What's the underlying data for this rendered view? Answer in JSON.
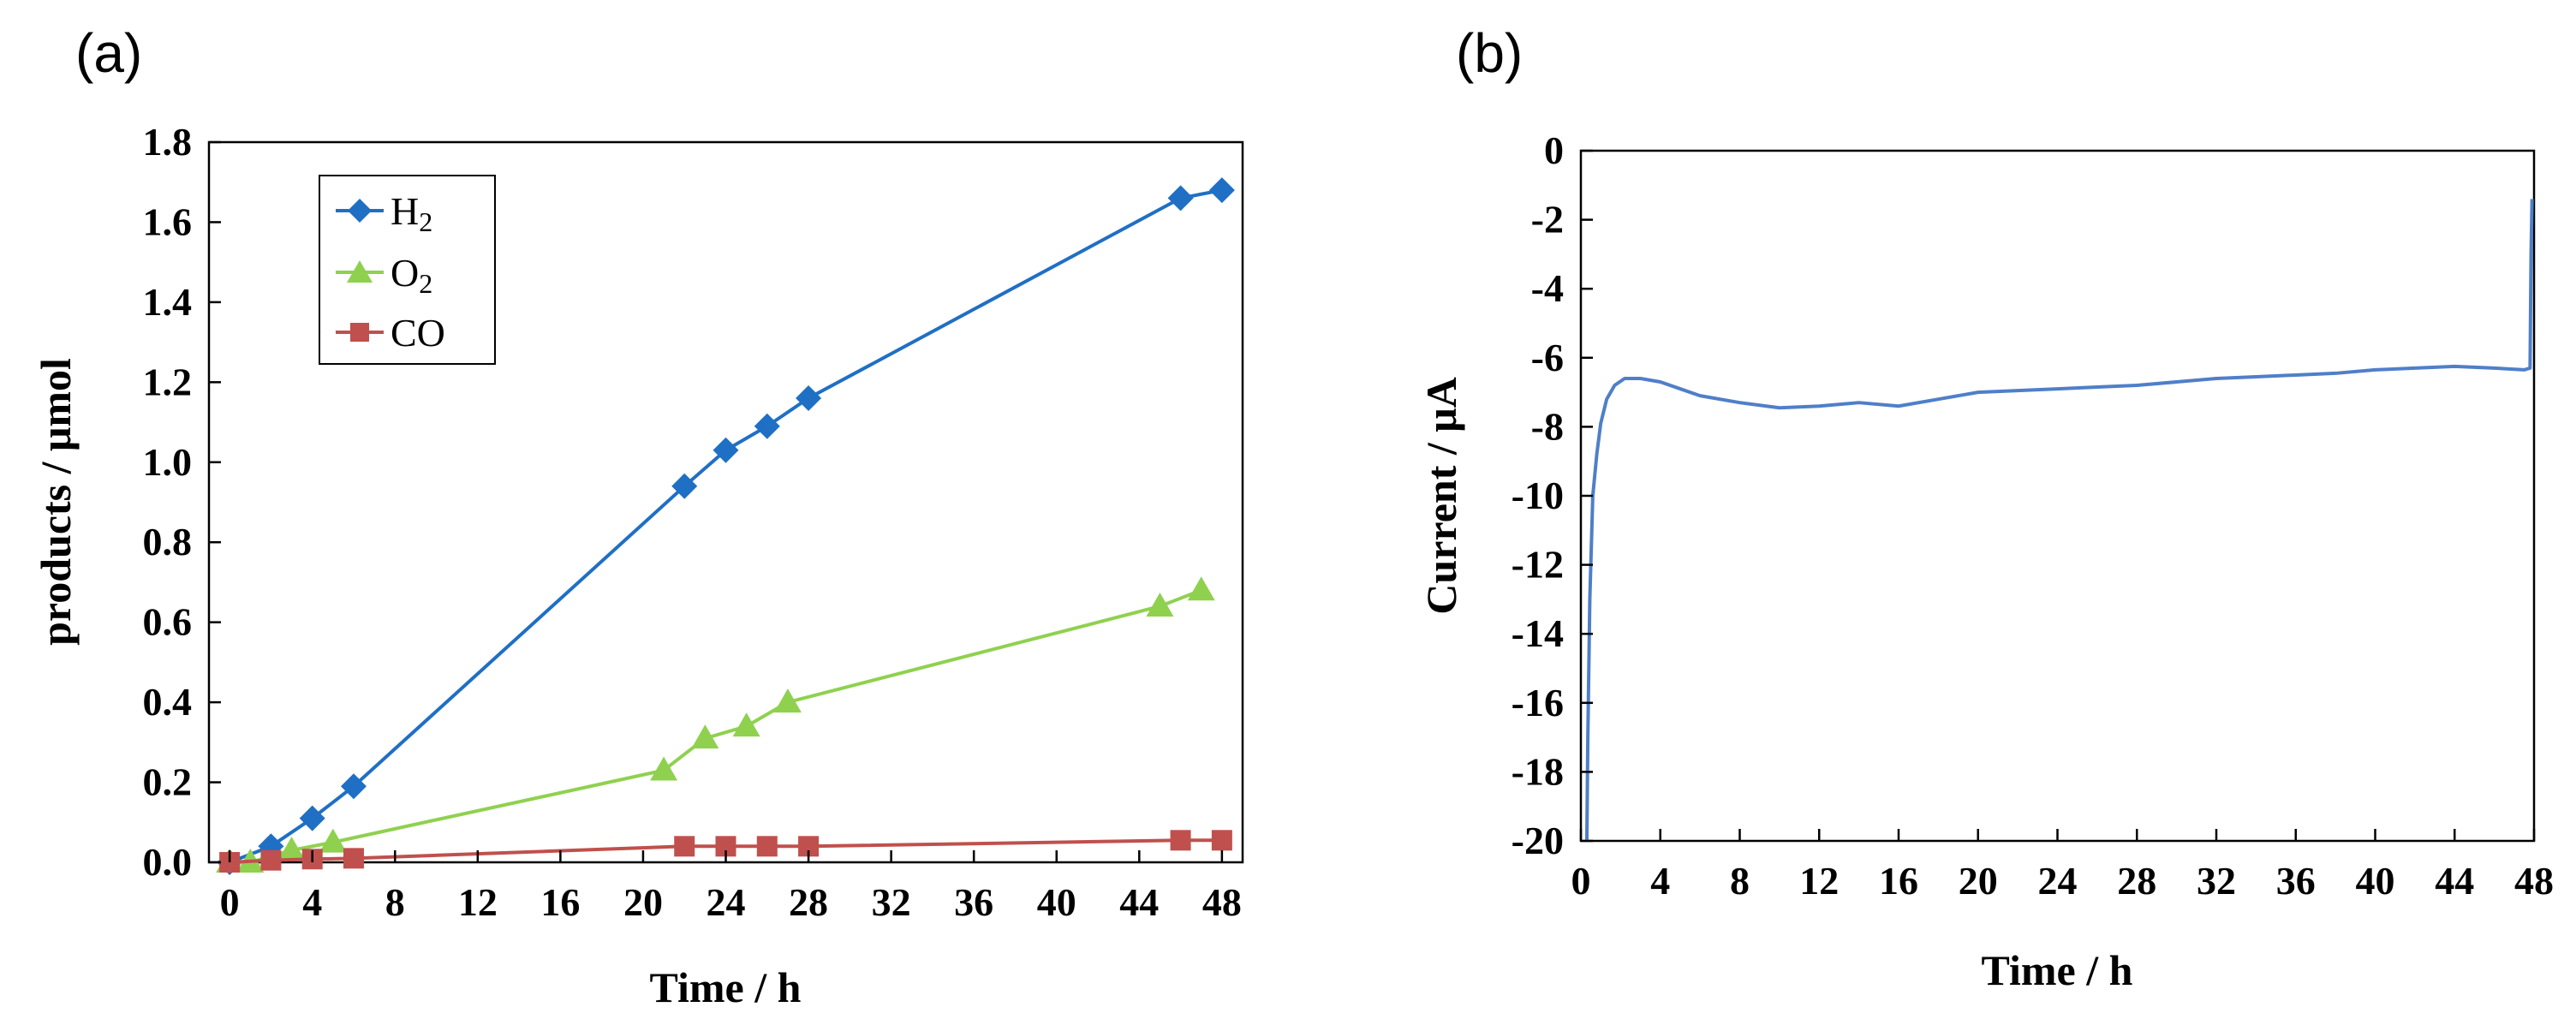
{
  "chart_data": [
    {
      "panel_label": "(a)",
      "type": "line",
      "title": "",
      "xlabel": "Time / h",
      "ylabel": "products / μmol",
      "xlim": [
        -1,
        49
      ],
      "ylim": [
        0,
        1.8
      ],
      "xticks": [
        "0",
        "4",
        "8",
        "12",
        "16",
        "20",
        "24",
        "28",
        "32",
        "36",
        "40",
        "44",
        "48"
      ],
      "yticks": [
        "0.0",
        "0.2",
        "0.4",
        "0.6",
        "0.8",
        "1.0",
        "1.2",
        "1.4",
        "1.6",
        "1.8"
      ],
      "legend_position": "top-left",
      "series": [
        {
          "name": "H",
          "subscript": "2",
          "color": "#1f6fc5",
          "marker": "diamond",
          "x": [
            0,
            2,
            4,
            6,
            22,
            24,
            26,
            28,
            46,
            48
          ],
          "y": [
            0.0,
            0.04,
            0.11,
            0.19,
            0.94,
            1.03,
            1.09,
            1.16,
            1.66,
            1.68
          ]
        },
        {
          "name": "O",
          "subscript": "2",
          "color": "#8fd14f",
          "marker": "triangle",
          "x": [
            0,
            1,
            3,
            5,
            21,
            23,
            25,
            27,
            45,
            47
          ],
          "y": [
            0.0,
            0.0,
            0.03,
            0.05,
            0.23,
            0.31,
            0.34,
            0.4,
            0.64,
            0.68
          ]
        },
        {
          "name": "CO",
          "subscript": "",
          "color": "#c0504d",
          "marker": "square",
          "x": [
            0,
            2,
            4,
            6,
            22,
            24,
            26,
            28,
            46,
            48
          ],
          "y": [
            0.0,
            0.005,
            0.008,
            0.01,
            0.04,
            0.04,
            0.04,
            0.04,
            0.055,
            0.055
          ]
        }
      ]
    },
    {
      "panel_label": "(b)",
      "type": "line",
      "title": "",
      "xlabel": "Time / h",
      "ylabel": "Current / μA",
      "xlim": [
        0,
        48
      ],
      "ylim": [
        -20,
        0
      ],
      "xticks": [
        "0",
        "4",
        "8",
        "12",
        "16",
        "20",
        "24",
        "28",
        "32",
        "36",
        "40",
        "44",
        "48"
      ],
      "yticks": [
        "0",
        "-2",
        "-4",
        "-6",
        "-8",
        "-10",
        "-12",
        "-14",
        "-16",
        "-18",
        "-20"
      ],
      "series": [
        {
          "name": "current",
          "color": "#4f7fc8",
          "x": [
            0.3,
            0.35,
            0.45,
            0.6,
            0.8,
            1.0,
            1.3,
            1.7,
            2.2,
            3.0,
            4.0,
            5.0,
            6.0,
            8.0,
            10.0,
            12.0,
            14.0,
            16.0,
            18.0,
            20.0,
            22.0,
            24.0,
            26.0,
            28.0,
            30.0,
            32.0,
            34.0,
            36.0,
            38.0,
            40.0,
            42.0,
            44.0,
            46.0,
            47.5,
            47.8,
            47.85,
            47.9
          ],
          "y": [
            -20.0,
            -17.0,
            -13.0,
            -10.0,
            -8.8,
            -7.9,
            -7.2,
            -6.8,
            -6.6,
            -6.6,
            -6.7,
            -6.9,
            -7.1,
            -7.3,
            -7.45,
            -7.4,
            -7.3,
            -7.4,
            -7.2,
            -7.0,
            -6.95,
            -6.9,
            -6.85,
            -6.8,
            -6.7,
            -6.6,
            -6.55,
            -6.5,
            -6.45,
            -6.35,
            -6.3,
            -6.25,
            -6.3,
            -6.35,
            -6.3,
            -3.0,
            -1.4
          ]
        }
      ]
    }
  ]
}
